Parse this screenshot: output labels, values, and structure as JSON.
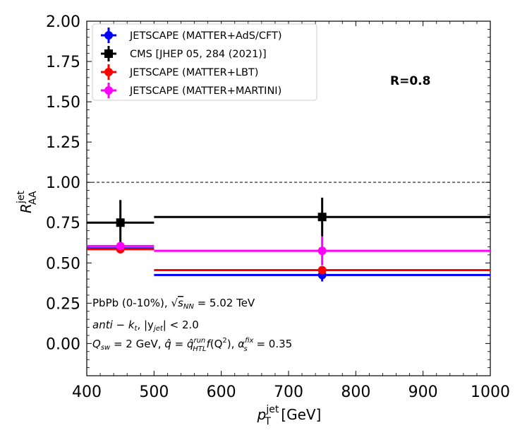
{
  "chart_data": {
    "type": "scatter",
    "xlabel_main": "p",
    "xlabel_sub": "T",
    "xlabel_sup": "jet",
    "xlabel_unit": " [GeV]",
    "ylabel_main": "R",
    "ylabel_sub": "AA",
    "ylabel_sup": "jet",
    "xlim": [
      400,
      1000
    ],
    "ylim": [
      -0.2,
      2.0
    ],
    "xticks": [
      400,
      500,
      600,
      700,
      800,
      900,
      1000
    ],
    "xtick_labels": [
      "400",
      "500",
      "600",
      "700",
      "800",
      "900",
      "1000"
    ],
    "yticks": [
      0.0,
      0.25,
      0.5,
      0.75,
      1.0,
      1.25,
      1.5,
      1.75,
      2.0
    ],
    "ytick_labels": [
      "0.00",
      "0.25",
      "0.50",
      "0.75",
      "1.00",
      "1.25",
      "1.50",
      "1.75",
      "2.00"
    ],
    "reference_line": 1.0,
    "legend_location": "upper-left",
    "series": [
      {
        "name": "JETSCAPE (MATTER+AdS/CFT)",
        "color": "#0000ff",
        "marker": "circle",
        "points": [
          {
            "x": 450,
            "y": 0.59,
            "xerr_low": 400,
            "xerr_high": 500,
            "yerr": 0.0
          },
          {
            "x": 750,
            "y": 0.425,
            "xerr_low": 500,
            "xerr_high": 1000,
            "yerr": 0.04
          }
        ]
      },
      {
        "name": "CMS [JHEP 05, 284 (2021)]",
        "color": "#000000",
        "marker": "square",
        "points": [
          {
            "x": 450,
            "y": 0.75,
            "xerr_low": 400,
            "xerr_high": 500,
            "yerr": 0.14
          },
          {
            "x": 750,
            "y": 0.785,
            "xerr_low": 500,
            "xerr_high": 1000,
            "yerr": 0.12
          }
        ]
      },
      {
        "name": "JETSCAPE (MATTER+LBT)",
        "color": "#ff0000",
        "marker": "circle",
        "points": [
          {
            "x": 450,
            "y": 0.585,
            "xerr_low": 400,
            "xerr_high": 500,
            "yerr": 0.015
          },
          {
            "x": 750,
            "y": 0.455,
            "xerr_low": 500,
            "xerr_high": 1000,
            "yerr": 0.015
          }
        ]
      },
      {
        "name": "JETSCAPE (MATTER+MARTINI)",
        "color": "#ff00ff",
        "marker": "circle",
        "points": [
          {
            "x": 450,
            "y": 0.605,
            "xerr_low": 400,
            "xerr_high": 500,
            "yerr": 0.015
          },
          {
            "x": 750,
            "y": 0.575,
            "xerr_low": 500,
            "xerr_high": 1000,
            "yerr": 0.09
          }
        ]
      }
    ],
    "annotations": {
      "radius": "R=0.8",
      "line1_a": "PbPb (0-10%), ",
      "line1_sqrt_s": "s",
      "line1_sqrt_sub": "NN",
      "line1_b": " = 5.02 TeV",
      "line2_a": "anti",
      "line2_b": " − k",
      "line2_b_sub": "t",
      "line2_c": ", |y",
      "line2_c_sub": "jet",
      "line2_d": "| < 2.0",
      "line3_q": "Q",
      "line3_q_sub": "sw",
      "line3_a": " = 2 GeV, ",
      "line3_qhat": "q̂",
      "line3_b": " = ",
      "line3_qhat2": "q̂",
      "line3_qhat2_sup": "run",
      "line3_qhat2_sub": "HTL",
      "line3_f": "f",
      "line3_c": "(Q",
      "line3_c_sup": "2",
      "line3_d": "), ",
      "line3_alpha": "α",
      "line3_alpha_sup": "fix",
      "line3_alpha_sub": "s",
      "line3_e": " = 0.35"
    }
  }
}
